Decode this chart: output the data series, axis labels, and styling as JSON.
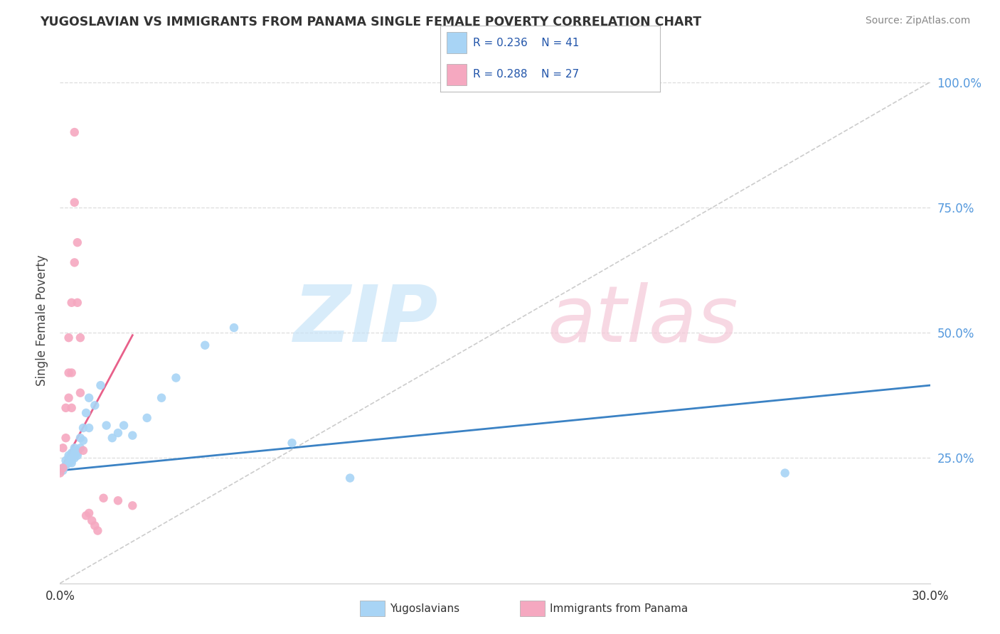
{
  "title": "YUGOSLAVIAN VS IMMIGRANTS FROM PANAMA SINGLE FEMALE POVERTY CORRELATION CHART",
  "source": "Source: ZipAtlas.com",
  "ylabel": "Single Female Poverty",
  "legend_r1": "R = 0.236",
  "legend_n1": "N = 41",
  "legend_r2": "R = 0.288",
  "legend_n2": "N = 27",
  "legend_label1": "Yugoslavians",
  "legend_label2": "Immigrants from Panama",
  "blue_dot_color": "#A8D4F5",
  "pink_dot_color": "#F5A8C0",
  "blue_line_color": "#3B82C4",
  "pink_line_color": "#E8608A",
  "diag_line_color": "#CCCCCC",
  "grid_color": "#DDDDDD",
  "right_axis_color": "#5599DD",
  "xlim": [
    0.0,
    0.3
  ],
  "ylim": [
    0.0,
    1.05
  ],
  "yug_x": [
    0.0,
    0.001,
    0.001,
    0.002,
    0.002,
    0.003,
    0.003,
    0.003,
    0.004,
    0.004,
    0.004,
    0.004,
    0.005,
    0.005,
    0.005,
    0.005,
    0.006,
    0.006,
    0.006,
    0.007,
    0.007,
    0.008,
    0.008,
    0.009,
    0.01,
    0.01,
    0.012,
    0.014,
    0.016,
    0.018,
    0.02,
    0.022,
    0.025,
    0.03,
    0.035,
    0.04,
    0.05,
    0.06,
    0.08,
    0.1,
    0.25
  ],
  "yug_y": [
    0.225,
    0.225,
    0.23,
    0.235,
    0.245,
    0.24,
    0.25,
    0.255,
    0.24,
    0.25,
    0.245,
    0.26,
    0.25,
    0.26,
    0.27,
    0.265,
    0.255,
    0.265,
    0.26,
    0.27,
    0.29,
    0.285,
    0.31,
    0.34,
    0.37,
    0.31,
    0.355,
    0.395,
    0.315,
    0.29,
    0.3,
    0.315,
    0.295,
    0.33,
    0.37,
    0.41,
    0.475,
    0.51,
    0.28,
    0.21,
    0.22
  ],
  "pan_x": [
    0.0,
    0.001,
    0.001,
    0.002,
    0.002,
    0.003,
    0.003,
    0.003,
    0.004,
    0.004,
    0.004,
    0.005,
    0.005,
    0.005,
    0.006,
    0.006,
    0.007,
    0.007,
    0.008,
    0.009,
    0.01,
    0.011,
    0.012,
    0.013,
    0.015,
    0.02,
    0.025
  ],
  "pan_y": [
    0.22,
    0.23,
    0.27,
    0.29,
    0.35,
    0.37,
    0.42,
    0.49,
    0.35,
    0.42,
    0.56,
    0.64,
    0.76,
    0.9,
    0.68,
    0.56,
    0.49,
    0.38,
    0.265,
    0.135,
    0.14,
    0.125,
    0.115,
    0.105,
    0.17,
    0.165,
    0.155
  ],
  "blue_line_x": [
    0.0,
    0.3
  ],
  "blue_line_y": [
    0.225,
    0.395
  ],
  "pink_line_x": [
    0.0,
    0.025
  ],
  "pink_line_y": [
    0.225,
    0.495
  ],
  "background_color": "#FFFFFF"
}
